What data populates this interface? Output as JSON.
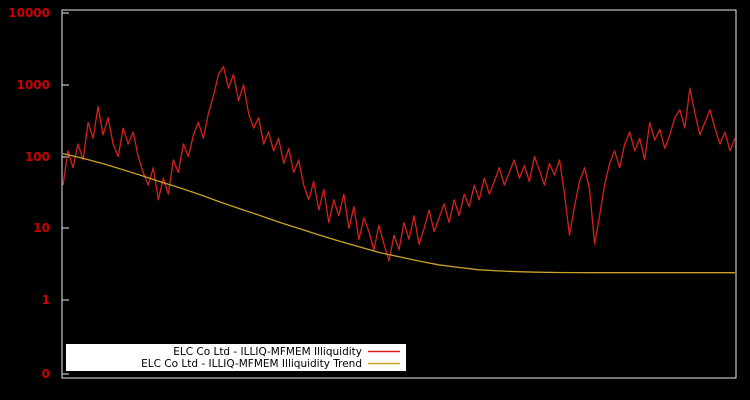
{
  "figure": {
    "background_color": "#000000",
    "axis_color": "#e8e8e8",
    "tick_label_color": "#cc0000"
  },
  "legend": {
    "position": "bottom-left",
    "background_color": "#ffffff"
  },
  "chart_data": {
    "type": "line",
    "yscale": "log",
    "ylim": [
      0.1,
      10000
    ],
    "grid": false,
    "x_axis_labels_visible": false,
    "y_ticks": [
      {
        "label": "10000"
      },
      {
        "label": "1000"
      },
      {
        "label": "100"
      },
      {
        "label": "10"
      },
      {
        "label": "1"
      },
      {
        "label": "0"
      }
    ],
    "series": [
      {
        "id": "illiquidity",
        "name": "ELC Co Ltd - ILLIQ-MFMEM Illiquidity",
        "color": "#d4211d",
        "values": [
          40,
          120,
          70,
          150,
          90,
          300,
          180,
          500,
          200,
          350,
          150,
          100,
          250,
          150,
          220,
          100,
          60,
          40,
          70,
          25,
          50,
          30,
          90,
          60,
          150,
          100,
          200,
          300,
          180,
          400,
          700,
          1400,
          1800,
          900,
          1400,
          600,
          1000,
          400,
          250,
          350,
          150,
          220,
          120,
          180,
          80,
          130,
          60,
          90,
          40,
          25,
          45,
          18,
          35,
          12,
          25,
          15,
          30,
          10,
          20,
          7,
          14,
          9,
          5,
          11,
          6,
          3.5,
          8,
          5,
          12,
          7,
          15,
          6,
          10,
          18,
          9,
          14,
          22,
          12,
          25,
          15,
          30,
          20,
          40,
          25,
          50,
          30,
          45,
          70,
          40,
          60,
          90,
          50,
          75,
          45,
          100,
          65,
          40,
          80,
          55,
          90,
          30,
          8,
          20,
          45,
          70,
          35,
          6,
          15,
          40,
          80,
          120,
          70,
          150,
          220,
          120,
          180,
          90,
          300,
          170,
          240,
          130,
          200,
          350,
          450,
          250,
          900,
          400,
          200,
          300,
          450,
          250,
          150,
          220,
          120,
          180
        ]
      },
      {
        "id": "illiquidity-trend",
        "name": "ELC Co Ltd - ILLIQ-MFMEM Illiquidity Trend",
        "color": "#c9a227",
        "values": [
          110,
          95,
          80,
          66,
          54,
          44,
          36,
          29,
          23,
          18.5,
          15,
          12,
          9.8,
          8,
          6.6,
          5.5,
          4.6,
          4.0,
          3.5,
          3.1,
          2.85,
          2.65,
          2.55,
          2.48,
          2.44,
          2.42,
          2.41,
          2.4,
          2.4,
          2.4,
          2.4,
          2.4,
          2.4,
          2.4,
          2.4
        ]
      }
    ]
  }
}
